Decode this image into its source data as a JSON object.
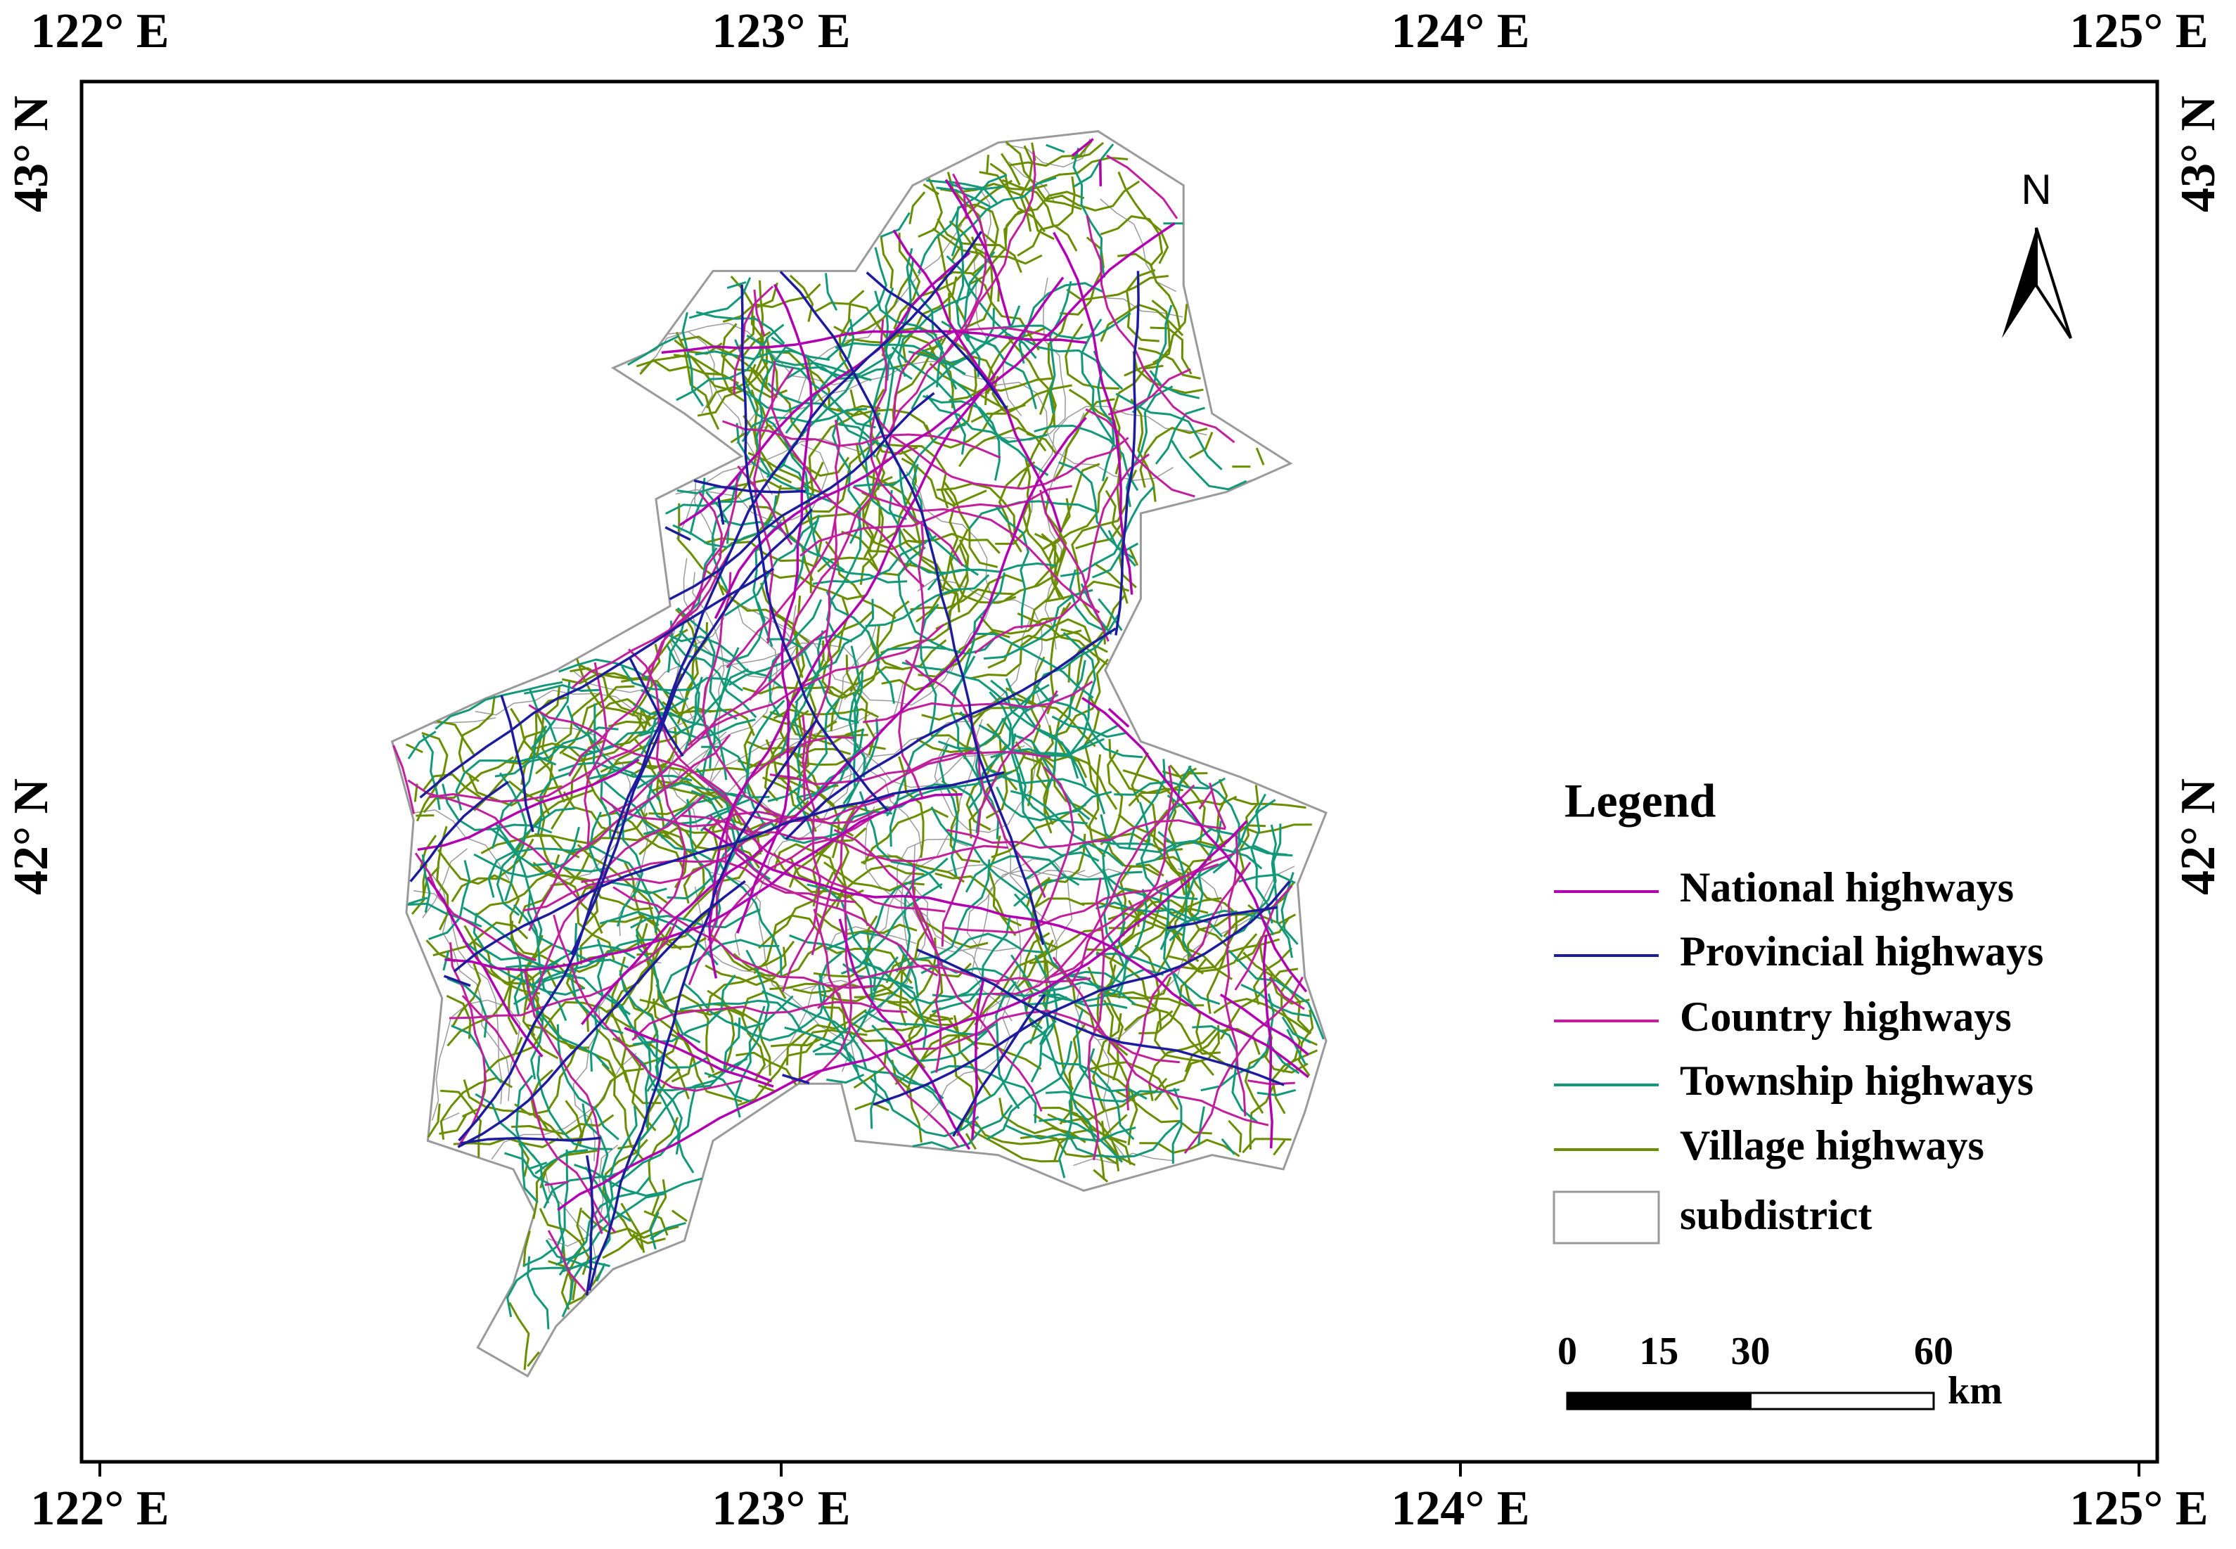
{
  "map": {
    "lon_labels": [
      "122° E",
      "123° E",
      "124° E",
      "125° E"
    ],
    "lat_labels": [
      "43° N",
      "42° N"
    ],
    "north": "N",
    "legend": {
      "title": "Legend",
      "items": [
        {
          "label": "National highways",
          "color": "#b000b0"
        },
        {
          "label": "Provincial highways",
          "color": "#1c1c9c"
        },
        {
          "label": "Country highways",
          "color": "#c0209c"
        },
        {
          "label": "Township highways",
          "color": "#14987a"
        },
        {
          "label": "Village highways",
          "color": "#6b8e00"
        }
      ],
      "boundary": {
        "label": "subdistrict",
        "color": "#9a9a9a"
      }
    },
    "scale_bar": {
      "ticks": [
        0,
        15,
        30,
        60
      ],
      "unit": "km"
    }
  }
}
